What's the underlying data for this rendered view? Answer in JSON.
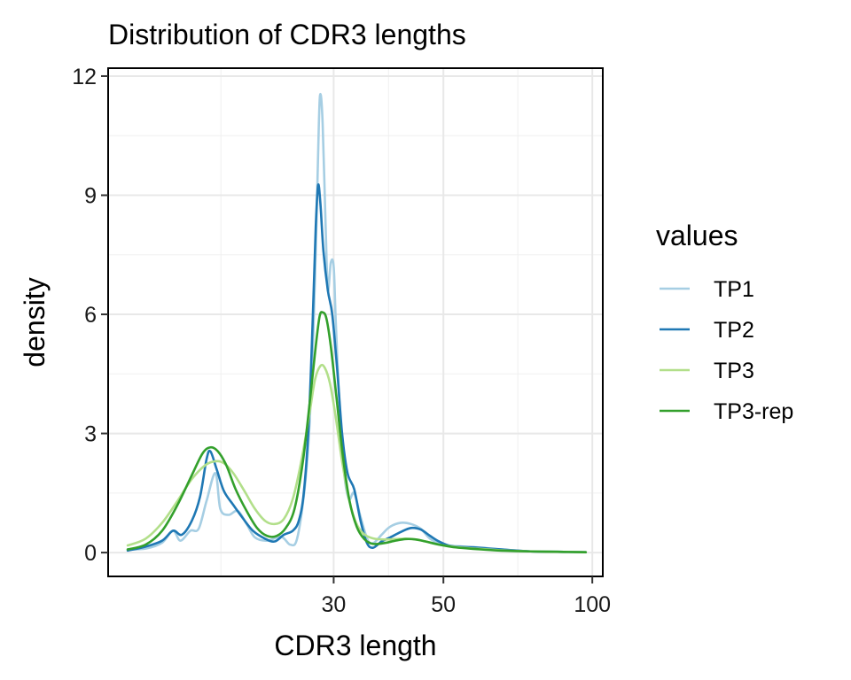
{
  "chart_data": {
    "type": "line",
    "title": "Distribution of CDR3 lengths",
    "xlabel": "CDR3 length",
    "ylabel": "density",
    "x_scale": "log10",
    "xlim": [
      10.5,
      105
    ],
    "ylim": [
      -0.6,
      12.2
    ],
    "x_ticks": [
      30,
      50,
      100
    ],
    "y_ticks": [
      0,
      3,
      6,
      9,
      12
    ],
    "grid": true,
    "legend": {
      "title": "values",
      "position": "right",
      "entries": [
        "TP1",
        "TP2",
        "TP3",
        "TP3-rep"
      ]
    },
    "series": [
      {
        "name": "TP1",
        "color": "#a6cee3",
        "points": [
          [
            11.5,
            0.08
          ],
          [
            12.5,
            0.1
          ],
          [
            13.5,
            0.25
          ],
          [
            14.2,
            0.55
          ],
          [
            14.7,
            0.3
          ],
          [
            15.4,
            0.55
          ],
          [
            16,
            0.6
          ],
          [
            16.6,
            1.3
          ],
          [
            17.3,
            2.0
          ],
          [
            17.7,
            1.1
          ],
          [
            18.4,
            0.95
          ],
          [
            19.2,
            1.05
          ],
          [
            20,
            0.72
          ],
          [
            20.8,
            0.38
          ],
          [
            22,
            0.3
          ],
          [
            23.5,
            0.4
          ],
          [
            24.5,
            0.2
          ],
          [
            25.3,
            0.35
          ],
          [
            26.2,
            1.6
          ],
          [
            26.8,
            3.2
          ],
          [
            27.3,
            5.6
          ],
          [
            27.7,
            8.4
          ],
          [
            28,
            10.8
          ],
          [
            28.2,
            11.55
          ],
          [
            28.5,
            10.8
          ],
          [
            28.9,
            8.2
          ],
          [
            29.2,
            6.6
          ],
          [
            29.6,
            7.3
          ],
          [
            30,
            7.2
          ],
          [
            30.3,
            5.8
          ],
          [
            30.8,
            3.8
          ],
          [
            31.5,
            2.0
          ],
          [
            32.2,
            1.35
          ],
          [
            33,
            1.5
          ],
          [
            34,
            0.9
          ],
          [
            35.2,
            0.3
          ],
          [
            36.2,
            0.25
          ],
          [
            37.5,
            0.45
          ],
          [
            39,
            0.65
          ],
          [
            41,
            0.75
          ],
          [
            43,
            0.72
          ],
          [
            45,
            0.6
          ],
          [
            47,
            0.35
          ],
          [
            50,
            0.2
          ],
          [
            55,
            0.15
          ],
          [
            60,
            0.12
          ],
          [
            65,
            0.08
          ],
          [
            75,
            0.03
          ],
          [
            85,
            0.02
          ],
          [
            97,
            0.01
          ]
        ]
      },
      {
        "name": "TP2",
        "color": "#1f78b4",
        "points": [
          [
            11.5,
            0.05
          ],
          [
            12.5,
            0.15
          ],
          [
            13.5,
            0.3
          ],
          [
            14.2,
            0.55
          ],
          [
            14.8,
            0.45
          ],
          [
            15.5,
            0.8
          ],
          [
            16.1,
            1.4
          ],
          [
            16.6,
            2.35
          ],
          [
            16.9,
            2.55
          ],
          [
            17.4,
            2.1
          ],
          [
            18,
            1.55
          ],
          [
            18.8,
            1.2
          ],
          [
            19.7,
            0.85
          ],
          [
            20.6,
            0.55
          ],
          [
            21.8,
            0.35
          ],
          [
            22.8,
            0.28
          ],
          [
            23.8,
            0.45
          ],
          [
            24.8,
            0.55
          ],
          [
            25.5,
            0.8
          ],
          [
            26.1,
            1.5
          ],
          [
            26.7,
            3.2
          ],
          [
            27.2,
            5.8
          ],
          [
            27.6,
            8.2
          ],
          [
            27.9,
            9.25
          ],
          [
            28.2,
            8.8
          ],
          [
            28.6,
            7.6
          ],
          [
            29.2,
            6.6
          ],
          [
            29.8,
            6.0
          ],
          [
            30.5,
            4.6
          ],
          [
            31.2,
            3.0
          ],
          [
            32,
            2.0
          ],
          [
            33,
            1.6
          ],
          [
            34,
            0.8
          ],
          [
            35,
            0.25
          ],
          [
            36,
            0.12
          ],
          [
            37.5,
            0.28
          ],
          [
            39,
            0.38
          ],
          [
            41,
            0.52
          ],
          [
            43,
            0.62
          ],
          [
            45,
            0.58
          ],
          [
            47,
            0.42
          ],
          [
            49,
            0.28
          ],
          [
            52,
            0.16
          ],
          [
            58,
            0.13
          ],
          [
            62,
            0.1
          ],
          [
            67,
            0.07
          ],
          [
            75,
            0.03
          ],
          [
            85,
            0.02
          ],
          [
            97,
            0.01
          ]
        ]
      },
      {
        "name": "TP3",
        "color": "#b2df8a",
        "points": [
          [
            11.5,
            0.18
          ],
          [
            12.5,
            0.35
          ],
          [
            13.5,
            0.75
          ],
          [
            14.5,
            1.3
          ],
          [
            15.5,
            1.85
          ],
          [
            16.5,
            2.2
          ],
          [
            17.3,
            2.3
          ],
          [
            18,
            2.25
          ],
          [
            18.8,
            2.0
          ],
          [
            19.8,
            1.55
          ],
          [
            20.8,
            1.1
          ],
          [
            21.8,
            0.8
          ],
          [
            22.8,
            0.72
          ],
          [
            23.8,
            0.85
          ],
          [
            24.8,
            1.35
          ],
          [
            25.8,
            2.3
          ],
          [
            26.8,
            3.5
          ],
          [
            27.5,
            4.35
          ],
          [
            28.2,
            4.7
          ],
          [
            28.8,
            4.65
          ],
          [
            29.5,
            4.25
          ],
          [
            30.3,
            3.4
          ],
          [
            31.2,
            2.3
          ],
          [
            32.2,
            1.35
          ],
          [
            33.3,
            0.75
          ],
          [
            34.5,
            0.47
          ],
          [
            36,
            0.36
          ],
          [
            38,
            0.33
          ],
          [
            40,
            0.34
          ],
          [
            42,
            0.35
          ],
          [
            44,
            0.33
          ],
          [
            46,
            0.28
          ],
          [
            49,
            0.2
          ],
          [
            53,
            0.14
          ],
          [
            58,
            0.1
          ],
          [
            65,
            0.06
          ],
          [
            75,
            0.03
          ],
          [
            85,
            0.02
          ],
          [
            97,
            0.01
          ]
        ]
      },
      {
        "name": "TP3-rep",
        "color": "#33a02c",
        "points": [
          [
            11.5,
            0.08
          ],
          [
            12.5,
            0.2
          ],
          [
            13.5,
            0.55
          ],
          [
            14.5,
            1.2
          ],
          [
            15.5,
            1.95
          ],
          [
            16.3,
            2.5
          ],
          [
            16.9,
            2.65
          ],
          [
            17.5,
            2.55
          ],
          [
            18.2,
            2.2
          ],
          [
            19,
            1.6
          ],
          [
            20,
            1.05
          ],
          [
            21,
            0.62
          ],
          [
            22,
            0.42
          ],
          [
            23,
            0.42
          ],
          [
            24,
            0.62
          ],
          [
            25,
            1.1
          ],
          [
            26,
            2.3
          ],
          [
            26.9,
            3.9
          ],
          [
            27.6,
            5.2
          ],
          [
            28.1,
            5.95
          ],
          [
            28.5,
            6.05
          ],
          [
            29,
            5.9
          ],
          [
            29.6,
            5.2
          ],
          [
            30.4,
            3.9
          ],
          [
            31.3,
            2.45
          ],
          [
            32.3,
            1.3
          ],
          [
            33.4,
            0.65
          ],
          [
            34.6,
            0.34
          ],
          [
            36,
            0.22
          ],
          [
            38,
            0.24
          ],
          [
            40,
            0.3
          ],
          [
            42,
            0.34
          ],
          [
            44,
            0.33
          ],
          [
            46,
            0.28
          ],
          [
            49,
            0.2
          ],
          [
            53,
            0.13
          ],
          [
            58,
            0.09
          ],
          [
            65,
            0.05
          ],
          [
            75,
            0.03
          ],
          [
            85,
            0.02
          ],
          [
            97,
            0.01
          ]
        ]
      }
    ]
  }
}
